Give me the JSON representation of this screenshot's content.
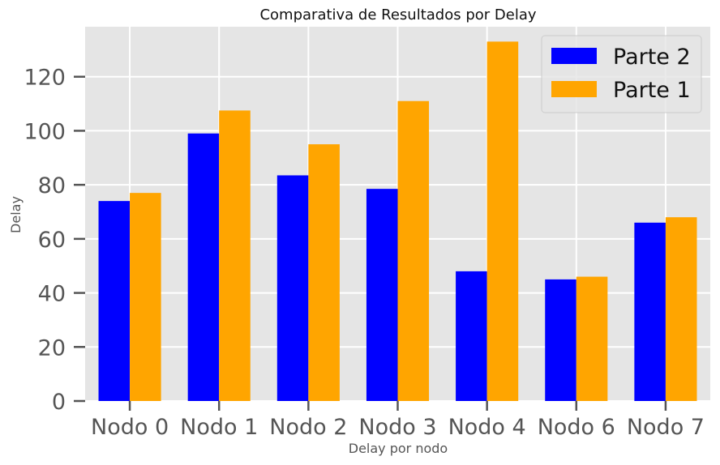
{
  "chart_data": {
    "type": "bar",
    "title": "Comparativa de Resultados por Delay",
    "xlabel": "Delay por nodo",
    "ylabel": "Delay",
    "categories": [
      "Nodo 0",
      "Nodo 1",
      "Nodo 2",
      "Nodo 3",
      "Nodo 4",
      "Nodo 6",
      "Nodo 7"
    ],
    "series": [
      {
        "name": "Parte 2",
        "color": "#0000ff",
        "values": [
          74,
          99,
          83.5,
          78.5,
          48,
          45,
          66
        ]
      },
      {
        "name": "Parte 1",
        "color": "#ffa500",
        "values": [
          77,
          107.5,
          95,
          111,
          133,
          46,
          68
        ]
      }
    ],
    "ylim": [
      0,
      138.5
    ],
    "yticks": [
      0,
      20,
      40,
      60,
      80,
      100,
      120
    ],
    "grid": true,
    "legend_position": "top-right",
    "background_color": "#e5e5e5",
    "grid_color": "#ffffff"
  }
}
